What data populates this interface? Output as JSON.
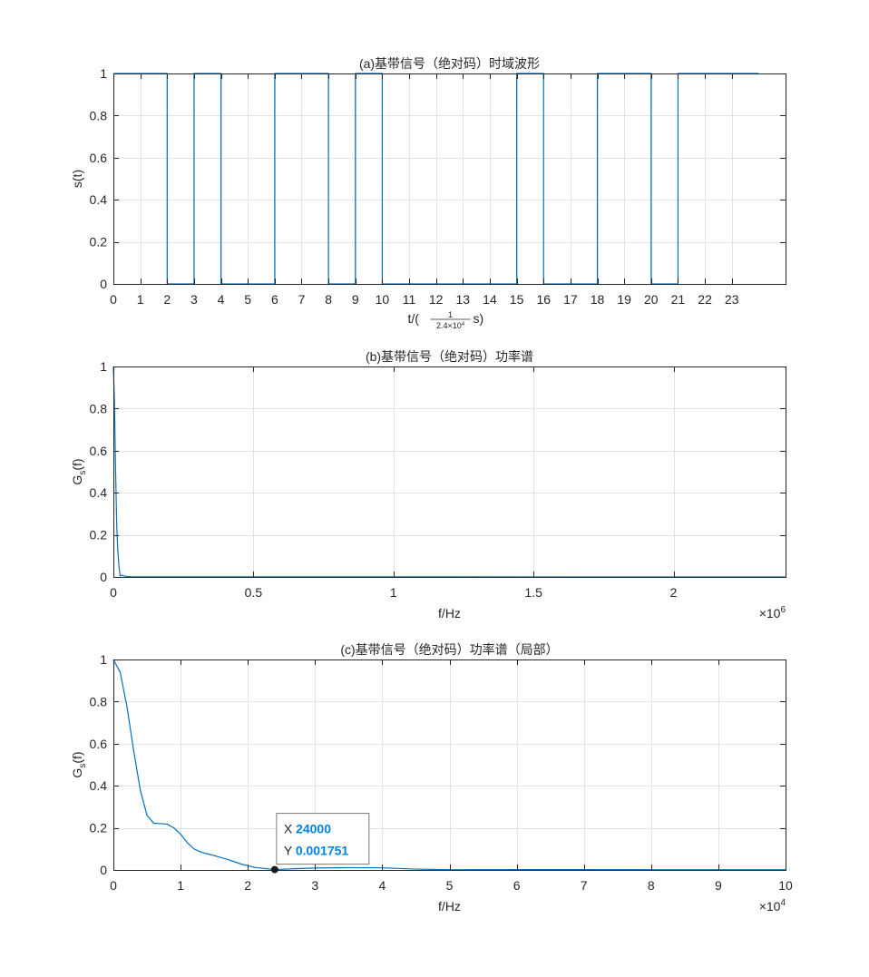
{
  "colors": {
    "line": "#0072BD",
    "grid": "#e3e3e3",
    "axis": "#262626",
    "text": "#262626",
    "datatip_value": "#0083E0"
  },
  "chart_data": [
    {
      "id": "a",
      "type": "line",
      "title": "(a)基带信号（绝对码）时域波形",
      "ylabel": "s(t)",
      "xlabel": {
        "prefix": "t/(",
        "num": "1",
        "den_base": "2.4×10",
        "den_exp": "4",
        "suffix": " s)"
      },
      "xlim": [
        0,
        25
      ],
      "ylim": [
        0,
        1
      ],
      "xticks": [
        0,
        1,
        2,
        3,
        4,
        5,
        6,
        7,
        8,
        9,
        10,
        11,
        12,
        13,
        14,
        15,
        16,
        17,
        18,
        19,
        20,
        21,
        22,
        23
      ],
      "xtick_labels": [
        "0",
        "1",
        "2",
        "3",
        "4",
        "5",
        "6",
        "7",
        "8",
        "9",
        "10",
        "11",
        "12",
        "13",
        "14",
        "15",
        "16",
        "17",
        "18",
        "19",
        "20",
        "21",
        "22",
        "23"
      ],
      "yticks": [
        0,
        0.2,
        0.4,
        0.6,
        0.8,
        1
      ],
      "ytick_labels": [
        "0",
        "0.2",
        "0.4",
        "0.6",
        "0.8",
        "1"
      ],
      "grid": true,
      "series": [
        {
          "step": true,
          "bits": [
            1,
            1,
            0,
            1,
            0,
            0,
            1,
            1,
            0,
            1,
            0,
            0,
            0,
            0,
            0,
            1,
            0,
            0,
            1,
            1,
            0,
            1,
            1,
            1
          ]
        }
      ]
    },
    {
      "id": "b",
      "type": "line",
      "title": "(b)基带信号（绝对码）功率谱",
      "ylabel": {
        "main": "G",
        "sub": "s",
        "tail": "(f)"
      },
      "xlabel": "f/Hz",
      "exponent": {
        "prefix": "×10",
        "exp": "6"
      },
      "xlim": [
        0,
        2.4
      ],
      "ylim": [
        0,
        1
      ],
      "xticks": [
        0,
        0.5,
        1,
        1.5,
        2
      ],
      "xtick_labels": [
        "0",
        "0.5",
        "1",
        "1.5",
        "2"
      ],
      "yticks": [
        0,
        0.2,
        0.4,
        0.6,
        0.8,
        1
      ],
      "ytick_labels": [
        "0",
        "0.2",
        "0.4",
        "0.6",
        "0.8",
        "1"
      ],
      "grid": true,
      "series": [
        {
          "x": [
            0,
            0.004,
            0.008,
            0.012,
            0.016,
            0.02,
            0.024,
            0.03,
            0.04,
            0.06,
            2.4
          ],
          "y": [
            1,
            0.82,
            0.5,
            0.24,
            0.12,
            0.05,
            0.005,
            0.008,
            0.004,
            0.001,
            0
          ]
        }
      ]
    },
    {
      "id": "c",
      "type": "line",
      "title": "(c)基带信号（绝对码）功率谱（局部）",
      "ylabel": {
        "main": "G",
        "sub": "s",
        "tail": "(f)"
      },
      "xlabel": "f/Hz",
      "exponent": {
        "prefix": "×10",
        "exp": "4"
      },
      "xlim": [
        0,
        10
      ],
      "ylim": [
        0,
        1
      ],
      "xticks": [
        0,
        1,
        2,
        3,
        4,
        5,
        6,
        7,
        8,
        9,
        10
      ],
      "xtick_labels": [
        "0",
        "1",
        "2",
        "3",
        "4",
        "5",
        "6",
        "7",
        "8",
        "9",
        "10"
      ],
      "yticks": [
        0,
        0.2,
        0.4,
        0.6,
        0.8,
        1
      ],
      "ytick_labels": [
        "0",
        "0.2",
        "0.4",
        "0.6",
        "0.8",
        "1"
      ],
      "grid": true,
      "series": [
        {
          "x": [
            0,
            0.1,
            0.2,
            0.3,
            0.4,
            0.5,
            0.6,
            0.7,
            0.8,
            0.9,
            1.0,
            1.1,
            1.2,
            1.3,
            1.5,
            1.7,
            1.9,
            2.1,
            2.4,
            2.7,
            3.0,
            3.5,
            4.0,
            4.5,
            5.0,
            6.0,
            7.0,
            8.0,
            9.0,
            10.0
          ],
          "y": [
            1,
            0.94,
            0.78,
            0.57,
            0.38,
            0.26,
            0.222,
            0.22,
            0.218,
            0.2,
            0.17,
            0.13,
            0.1,
            0.085,
            0.068,
            0.05,
            0.028,
            0.012,
            0.002,
            0.006,
            0.009,
            0.011,
            0.01,
            0.004,
            0.001,
            0.002,
            0.002,
            0.001,
            0.001,
            0.001
          ]
        }
      ],
      "datatip": {
        "x": 2.4,
        "y": 0.001751,
        "x_label": "X",
        "y_label": "Y",
        "x_value": "24000",
        "y_value": "0.001751"
      }
    }
  ]
}
